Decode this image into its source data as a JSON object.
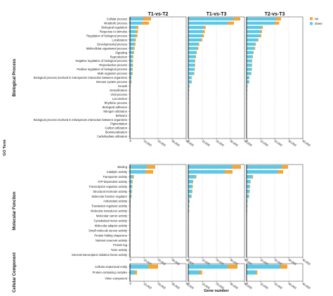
{
  "chart_data": {
    "type": "bar",
    "stacked": true,
    "orientation": "horizontal",
    "facets": [
      "T1-vs-T2",
      "T1-vs-T3",
      "T2-vs-T3"
    ],
    "xlabel": "Gene number",
    "ylabel": "GO Term",
    "xlim": [
      0,
      40000
    ],
    "x_ticks": [
      "0",
      "10,000",
      "20,000",
      "30,000",
      "40,000"
    ],
    "x_tick_values": [
      0,
      10000,
      20000,
      30000,
      40000
    ],
    "legend": {
      "placement": "top-right",
      "entries": [
        "up",
        "down"
      ]
    },
    "colors": {
      "up": "#f5a533",
      "down": "#5bc8e6"
    },
    "grid": true,
    "groups": [
      {
        "name": "Biological Process",
        "categories": [
          "Cellular process",
          "Metabolic process",
          "Biological regulation",
          "Response to stimulus",
          "Regulation of biological process",
          "Localization",
          "Developmental process",
          "Multicellular organismal process",
          "Signaling",
          "Reproduction",
          "Negative regulation of biological process",
          "Reproductive process",
          "Positive regulation of biological process",
          "Multi-organism process",
          "Biological process involved in interspecies interaction between organisms",
          "Immune system process",
          "Growth",
          "Detoxification",
          "Viral process",
          "Locomotion",
          "Rhythmic process",
          "Biological adhesion",
          "Nitrogen utilization",
          "Behavior",
          "Biological process involved in intraspecies interaction between organisms",
          "Pigmentation",
          "Carbon utilization",
          "Biomineralization",
          "Carbohydrate utilization"
        ],
        "series": [
          {
            "name": "up",
            "facet_values": [
              [
                5500,
                5000,
                1500,
                1400,
                1300,
                1000,
                900,
                800,
                700,
                500,
                500,
                500,
                400,
                400,
                200,
                300,
                100,
                80,
                60,
                50,
                40,
                30,
                20,
                20,
                10,
                10,
                5,
                5,
                5
              ],
              [
                5000,
                4500,
                1400,
                1300,
                1200,
                900,
                800,
                700,
                600,
                500,
                400,
                400,
                400,
                300,
                200,
                200,
                100,
                70,
                50,
                40,
                30,
                30,
                20,
                20,
                10,
                10,
                5,
                5,
                5
              ],
              [
                3500,
                3200,
                1100,
                1000,
                950,
                700,
                650,
                600,
                500,
                400,
                350,
                350,
                300,
                250,
                150,
                150,
                80,
                50,
                40,
                30,
                25,
                20,
                15,
                15,
                8,
                8,
                4,
                4,
                4
              ]
            ]
          },
          {
            "name": "down",
            "facet_values": [
              [
                9500,
                8500,
                4500,
                4300,
                4000,
                3300,
                3000,
                2600,
                2200,
                1900,
                1700,
                1700,
                1600,
                1500,
                900,
                800,
                300,
                220,
                200,
                150,
                120,
                100,
                80,
                60,
                40,
                30,
                15,
                15,
                10
              ],
              [
                32000,
                28000,
                11000,
                10500,
                10000,
                9000,
                7000,
                6500,
                5500,
                5000,
                4600,
                4500,
                4300,
                4000,
                2300,
                2300,
                800,
                600,
                450,
                400,
                300,
                250,
                200,
                150,
                100,
                60,
                30,
                25,
                20
              ],
              [
                21000,
                20000,
                10500,
                10000,
                9500,
                7800,
                6000,
                5500,
                4500,
                4100,
                3700,
                3600,
                3500,
                3200,
                1900,
                1800,
                600,
                450,
                350,
                300,
                230,
                200,
                150,
                120,
                80,
                50,
                25,
                20,
                15
              ]
            ]
          }
        ]
      },
      {
        "name": "Molecular Function",
        "categories": [
          "Binding",
          "Catalytic activity",
          "Transporter activity",
          "ATP-dependent activity",
          "Transcription regulator activity",
          "Structural molecule activity",
          "Molecular function regulator",
          "Antioxidant activity",
          "Translation regulator activity",
          "Molecular transducer activity",
          "Molecular carrier activity",
          "Cytoskeletal motor activity",
          "Molecular adaptor activity",
          "Small molecule sensor activity",
          "Protein folding chaperone",
          "Nutrient reservoir activity",
          "Protein tag",
          "Toxin activity",
          "General transcription initiation factor activity"
        ],
        "series": [
          {
            "name": "up",
            "facet_values": [
              [
                6000,
                5500,
                800,
                400,
                350,
                300,
                250,
                100,
                80,
                70,
                40,
                30,
                25,
                15,
                10,
                8,
                5,
                4,
                3
              ],
              [
                6500,
                5500,
                800,
                500,
                450,
                400,
                350,
                120,
                90,
                80,
                50,
                40,
                30,
                20,
                12,
                10,
                6,
                5,
                4
              ],
              [
                4500,
                4000,
                600,
                350,
                300,
                250,
                200,
                80,
                60,
                50,
                30,
                25,
                20,
                12,
                8,
                6,
                4,
                3,
                2
              ]
            ]
          },
          {
            "name": "down",
            "facet_values": [
              [
                12000,
                11000,
                2000,
                1500,
                1300,
                1100,
                900,
                400,
                300,
                250,
                150,
                100,
                90,
                50,
                40,
                30,
                20,
                15,
                10
              ],
              [
                31000,
                26000,
                5000,
                3000,
                2800,
                2500,
                2000,
                800,
                600,
                500,
                300,
                200,
                150,
                100,
                80,
                60,
                40,
                30,
                20
              ],
              [
                25000,
                22000,
                4000,
                2500,
                2200,
                2000,
                1600,
                600,
                500,
                400,
                250,
                150,
                120,
                80,
                60,
                50,
                30,
                25,
                15
              ]
            ]
          }
        ]
      },
      {
        "name": "Cellular Component",
        "categories": [
          "Cellular anatomical entity",
          "Protein-containing complex",
          "Virion component"
        ],
        "series": [
          {
            "name": "up",
            "facet_values": [
              [
                7000,
                1500,
                20
              ],
              [
                7000,
                1800,
                20
              ],
              [
                5000,
                1200,
                15
              ]
            ]
          },
          {
            "name": "down",
            "facet_values": [
              [
                13000,
                3500,
                50
              ],
              [
                28000,
                8000,
                80
              ],
              [
                24000,
                6500,
                60
              ]
            ]
          }
        ]
      }
    ]
  }
}
